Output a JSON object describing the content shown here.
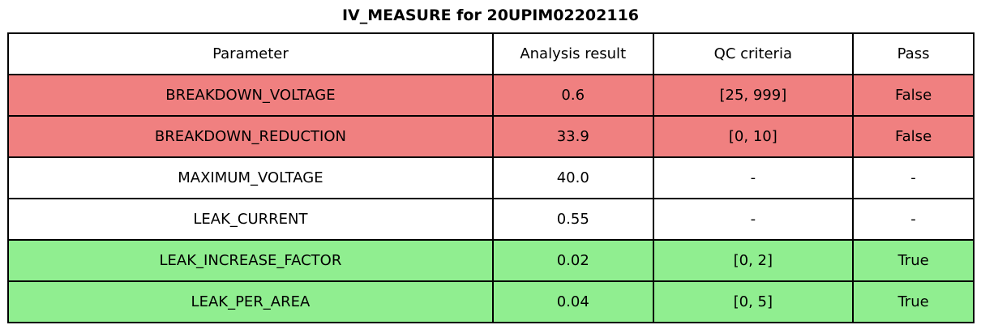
{
  "chart_data": {
    "type": "table",
    "title": "IV_MEASURE for 20UPIM02202116",
    "columns": [
      "Parameter",
      "Analysis result",
      "QC criteria",
      "Pass"
    ],
    "rows": [
      [
        "BREAKDOWN_VOLTAGE",
        "0.6",
        "[25, 999]",
        "False"
      ],
      [
        "BREAKDOWN_REDUCTION",
        "33.9",
        "[0, 10]",
        "False"
      ],
      [
        "MAXIMUM_VOLTAGE",
        "40.0",
        "-",
        "-"
      ],
      [
        "LEAK_CURRENT",
        "0.55",
        "-",
        "-"
      ],
      [
        "LEAK_INCREASE_FACTOR",
        "0.02",
        "[0, 2]",
        "True"
      ],
      [
        "LEAK_PER_AREA",
        "0.04",
        "[0, 5]",
        "True"
      ]
    ],
    "row_status": [
      "fail",
      "fail",
      "neutral",
      "neutral",
      "pass",
      "pass"
    ],
    "row_bg": [
      "#f08080",
      "#f08080",
      "#ffffff",
      "#ffffff",
      "#90ee90",
      "#90ee90"
    ],
    "colors": {
      "fail": "#f08080",
      "pass": "#90ee90",
      "neutral": "#ffffff",
      "border": "#000000",
      "header_bg": "#ffffff",
      "text": "#000000"
    },
    "layout": {
      "legend": "none",
      "grid": "full-borders",
      "title_position": "top-center"
    }
  }
}
